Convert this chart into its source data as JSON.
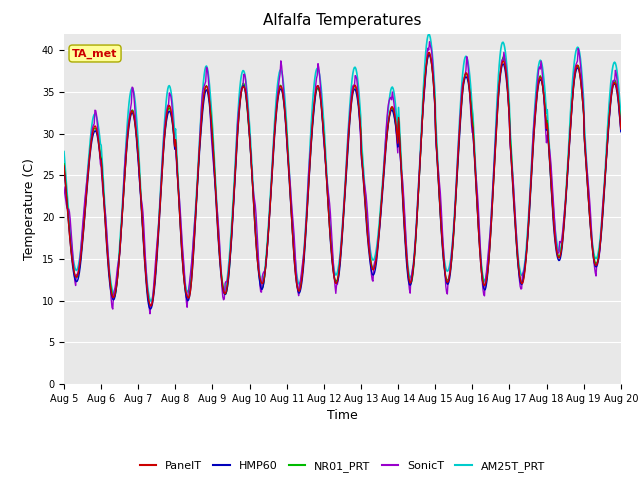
{
  "title": "Alfalfa Temperatures",
  "xlabel": "Time",
  "ylabel": "Temperature (C)",
  "ylim": [
    0,
    42
  ],
  "yticks": [
    0,
    5,
    10,
    15,
    20,
    25,
    30,
    35,
    40
  ],
  "xtick_labels": [
    "Aug 5",
    "Aug 6",
    "Aug 7",
    "Aug 8",
    "Aug 9",
    "Aug 10",
    "Aug 11",
    "Aug 12",
    "Aug 13",
    "Aug 14",
    "Aug 15",
    "Aug 16",
    "Aug 17",
    "Aug 18",
    "Aug 19",
    "Aug 20"
  ],
  "series": {
    "PanelT": {
      "color": "#cc0000",
      "lw": 1.0
    },
    "HMP60": {
      "color": "#0000bb",
      "lw": 1.0
    },
    "NR01_PRT": {
      "color": "#00bb00",
      "lw": 1.0
    },
    "SonicT": {
      "color": "#9900cc",
      "lw": 1.0
    },
    "AM25T_PRT": {
      "color": "#00cccc",
      "lw": 1.2
    }
  },
  "annotation_text": "TA_met",
  "annotation_color": "#cc0000",
  "annotation_bg": "#ffff99",
  "annotation_border": "#aaaa00",
  "background_color": "#ffffff",
  "plot_bg": "#e8e8e8",
  "grid_color": "#ffffff",
  "title_fontsize": 11,
  "tick_fontsize": 7,
  "label_fontsize": 9,
  "n_days": 15,
  "hours_per_day": 48,
  "daily_min": [
    12.5,
    10.0,
    9.0,
    10.0,
    10.5,
    11.5,
    11.0,
    12.0,
    13.5,
    12.0,
    12.0,
    11.5,
    12.0,
    15.0,
    14.0
  ],
  "daily_max": [
    30.5,
    32.5,
    33.0,
    35.5,
    35.5,
    35.5,
    35.5,
    35.5,
    33.0,
    39.5,
    37.0,
    38.5,
    36.5,
    38.0,
    36.0
  ]
}
